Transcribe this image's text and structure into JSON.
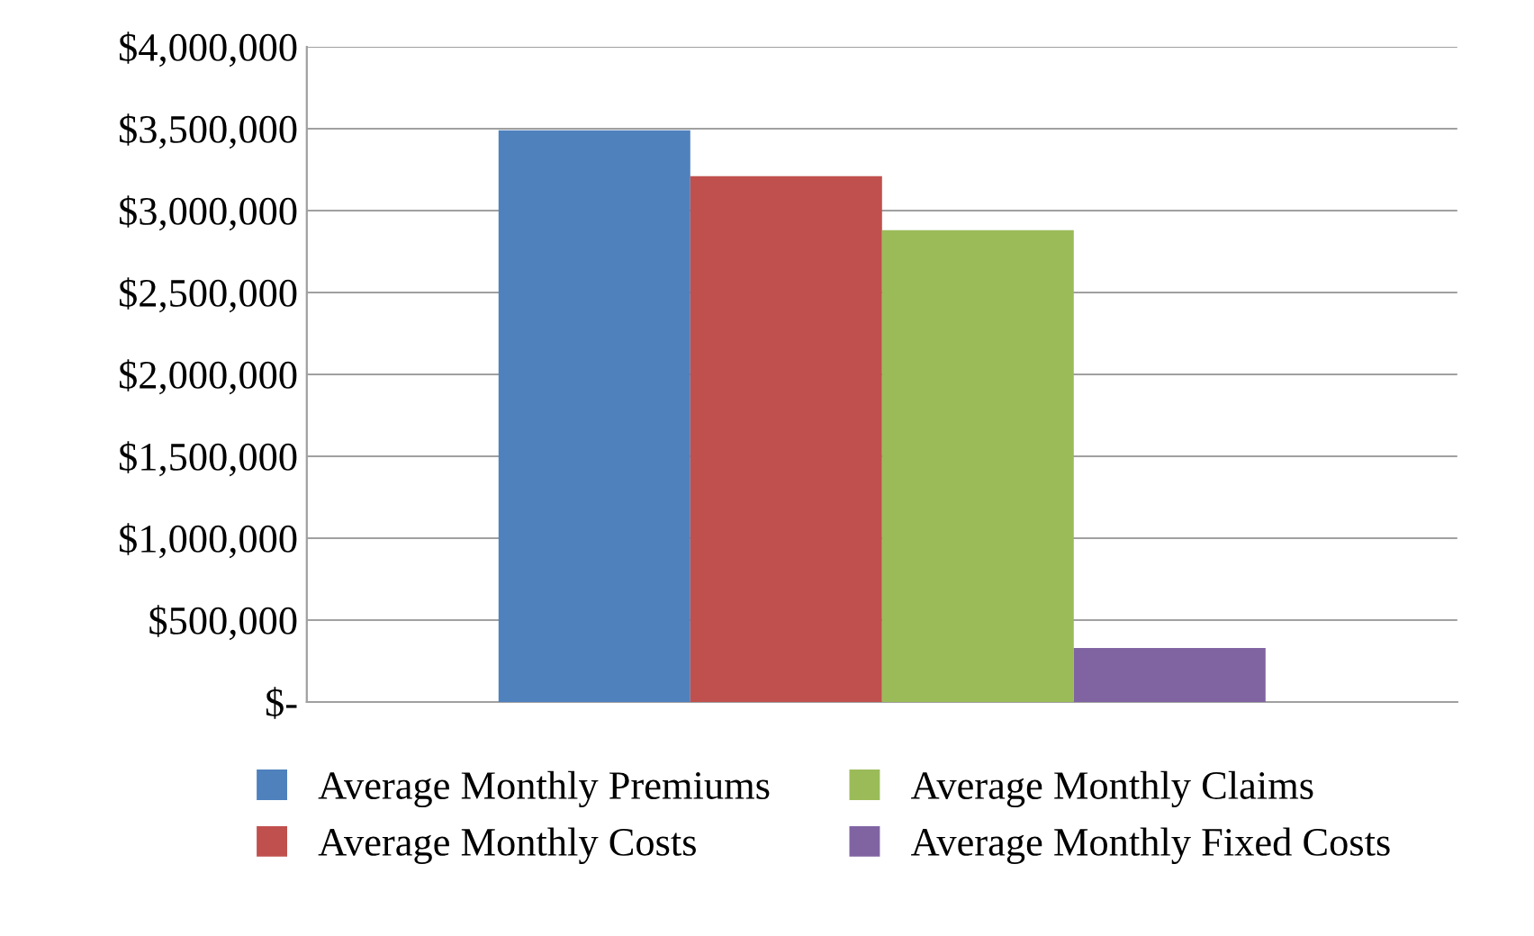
{
  "chart_data": {
    "type": "bar",
    "categories": [
      null
    ],
    "series": [
      {
        "name": "Average Monthly Premiums",
        "color": "#4f81bd",
        "values": [
          3490000
        ]
      },
      {
        "name": "Average Monthly Costs",
        "color": "#c0504d",
        "values": [
          3210000
        ]
      },
      {
        "name": "Average Monthly Claims",
        "color": "#9bbb59",
        "values": [
          2880000
        ]
      },
      {
        "name": "Average Monthly Fixed Costs",
        "color": "#8064a2",
        "values": [
          330000
        ]
      }
    ],
    "ylim": [
      0,
      4000000
    ],
    "yticks": [
      {
        "value": 0,
        "label": "$-"
      },
      {
        "value": 500000,
        "label": "$500,000"
      },
      {
        "value": 1000000,
        "label": "$1,000,000"
      },
      {
        "value": 1500000,
        "label": "$1,500,000"
      },
      {
        "value": 2000000,
        "label": "$2,000,000"
      },
      {
        "value": 2500000,
        "label": "$2,500,000"
      },
      {
        "value": 3000000,
        "label": "$3,000,000"
      },
      {
        "value": 3500000,
        "label": "$3,500,000"
      },
      {
        "value": 4000000,
        "label": "$4,000,000"
      }
    ],
    "grid": "y",
    "legend": "bottom"
  }
}
